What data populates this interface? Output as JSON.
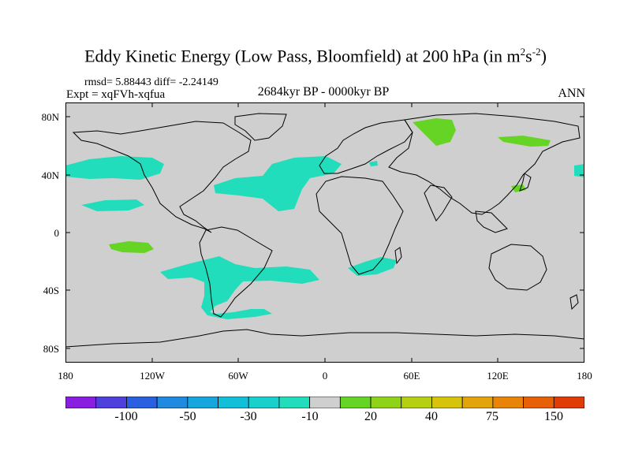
{
  "title": {
    "main": "Eddy Kinetic Energy (Low Pass, Bloomfield) at 200 hPa (in m",
    "sup1": "2",
    "mid": "s",
    "sup2": "-2",
    "end": ")"
  },
  "stats": "rmsd= 5.88443 diff= -2.24149",
  "experiment": "Expt = xqFVh-xqfua",
  "period": "2684kyr BP - 0000kyr BP",
  "season": "ANN",
  "lat_labels": [
    "80N",
    "40N",
    "0",
    "40S",
    "80S"
  ],
  "lon_labels": [
    "180",
    "120W",
    "60W",
    "0",
    "60E",
    "120E",
    "180"
  ],
  "colorbar": {
    "labels": [
      "-100",
      "-50",
      "-30",
      "-10",
      "20",
      "40",
      "75",
      "150"
    ],
    "colors": [
      "#8a1ee0",
      "#4f3fdc",
      "#2a5fe0",
      "#1f8ae0",
      "#14a6dd",
      "#11c0d8",
      "#1ad0cc",
      "#22ddbb",
      "#cfcfcf",
      "#66d424",
      "#8fd21a",
      "#b6cf12",
      "#d6c40c",
      "#e2a40a",
      "#e88408",
      "#e86006",
      "#e23c06"
    ]
  },
  "colors": {
    "land_ocean_background": "#cfcfcf",
    "negative_anomaly": "#22ddbb",
    "positive_anomaly": "#66d424"
  }
}
